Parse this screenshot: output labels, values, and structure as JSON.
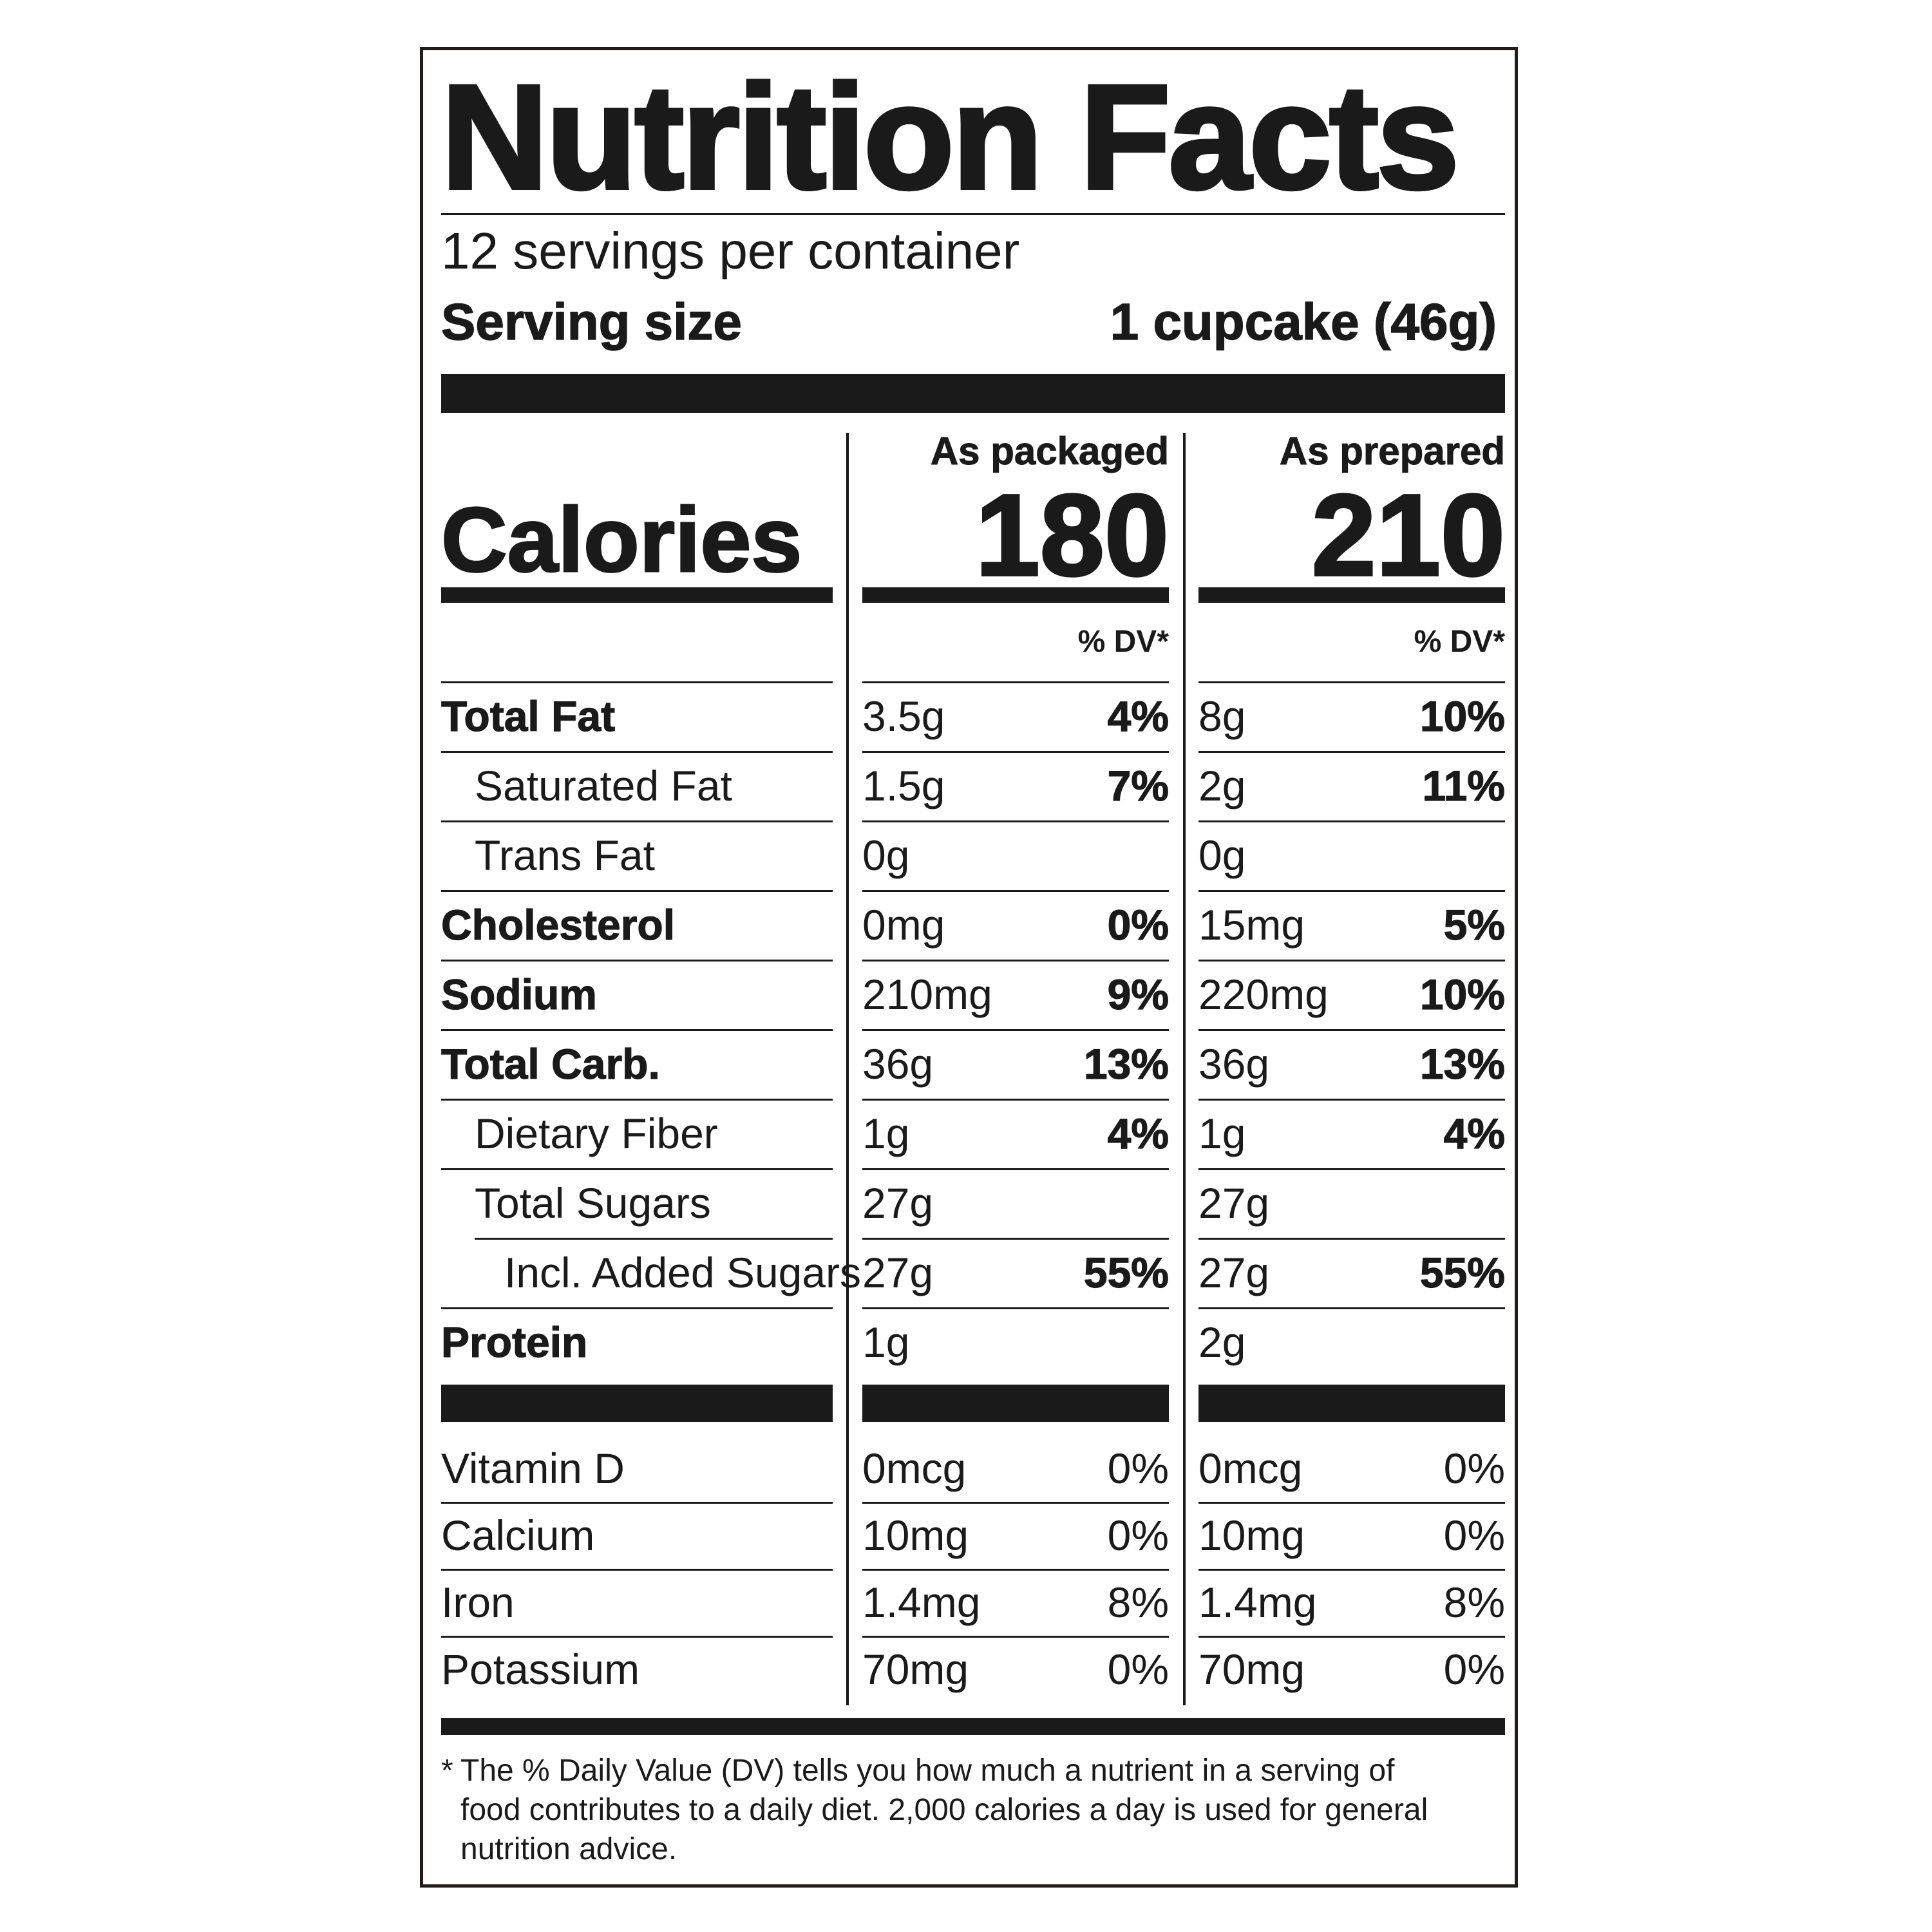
{
  "title": "Nutrition Facts",
  "servings_per_container": "12 servings per container",
  "serving_size_label": "Serving size",
  "serving_size_value": "1 cupcake (46g)",
  "calories_label": "Calories",
  "columns": [
    {
      "heading": "As packaged",
      "calories": "180",
      "dv_heading": "% DV*"
    },
    {
      "heading": "As prepared",
      "calories": "210",
      "dv_heading": "% DV*"
    }
  ],
  "nutrients": [
    {
      "name": "Total Fat",
      "bold": true,
      "indent": 0,
      "packaged_amount": "3.5g",
      "packaged_dv": "4%",
      "prepared_amount": "8g",
      "prepared_dv": "10%"
    },
    {
      "name": "Saturated Fat",
      "bold": false,
      "indent": 1,
      "packaged_amount": "1.5g",
      "packaged_dv": "7%",
      "prepared_amount": "2g",
      "prepared_dv": "11%"
    },
    {
      "name": "Trans Fat",
      "bold": false,
      "indent": 1,
      "packaged_amount": "0g",
      "packaged_dv": "",
      "prepared_amount": "0g",
      "prepared_dv": ""
    },
    {
      "name": "Cholesterol",
      "bold": true,
      "indent": 0,
      "packaged_amount": "0mg",
      "packaged_dv": "0%",
      "prepared_amount": "15mg",
      "prepared_dv": "5%"
    },
    {
      "name": "Sodium",
      "bold": true,
      "indent": 0,
      "packaged_amount": "210mg",
      "packaged_dv": "9%",
      "prepared_amount": "220mg",
      "prepared_dv": "10%"
    },
    {
      "name": "Total Carb.",
      "bold": true,
      "indent": 0,
      "packaged_amount": "36g",
      "packaged_dv": "13%",
      "prepared_amount": "36g",
      "prepared_dv": "13%"
    },
    {
      "name": "Dietary Fiber",
      "bold": false,
      "indent": 1,
      "packaged_amount": "1g",
      "packaged_dv": "4%",
      "prepared_amount": "1g",
      "prepared_dv": "4%"
    },
    {
      "name": "Total Sugars",
      "bold": false,
      "indent": 1,
      "packaged_amount": "27g",
      "packaged_dv": "",
      "prepared_amount": "27g",
      "prepared_dv": ""
    },
    {
      "name": "Incl. Added Sugars",
      "bold": false,
      "indent": 2,
      "packaged_amount": "27g",
      "packaged_dv": "55%",
      "prepared_amount": "27g",
      "prepared_dv": "55%"
    },
    {
      "name": "Protein",
      "bold": true,
      "indent": 0,
      "packaged_amount": "1g",
      "packaged_dv": "",
      "prepared_amount": "2g",
      "prepared_dv": ""
    }
  ],
  "vitamins": [
    {
      "name": "Vitamin D",
      "packaged_amount": "0mcg",
      "packaged_dv": "0%",
      "prepared_amount": "0mcg",
      "prepared_dv": "0%"
    },
    {
      "name": "Calcium",
      "packaged_amount": "10mg",
      "packaged_dv": "0%",
      "prepared_amount": "10mg",
      "prepared_dv": "0%"
    },
    {
      "name": "Iron",
      "packaged_amount": "1.4mg",
      "packaged_dv": "8%",
      "prepared_amount": "1.4mg",
      "prepared_dv": "8%"
    },
    {
      "name": "Potassium",
      "packaged_amount": "70mg",
      "packaged_dv": "0%",
      "prepared_amount": "70mg",
      "prepared_dv": "0%"
    }
  ],
  "footnote_star": "*",
  "footnote": "The % Daily Value (DV) tells you how much a nutrient in a serving of food contributes to a daily diet. 2,000 calories a day is used for general nutrition advice."
}
